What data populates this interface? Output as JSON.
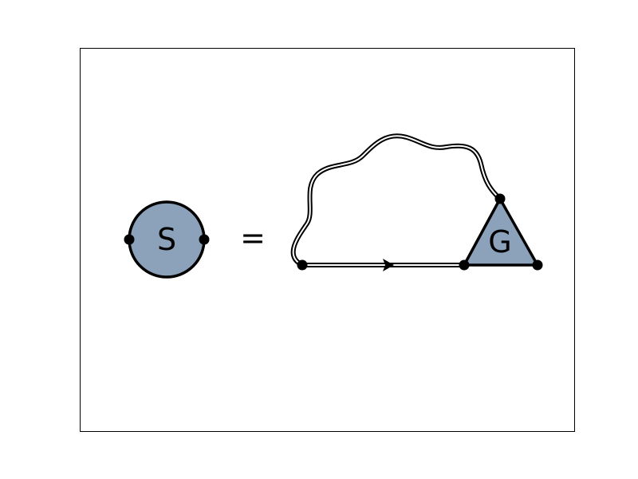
{
  "diagram": {
    "lhs": {
      "label": "S",
      "shape": "circle",
      "fill": "#8ca1ba"
    },
    "operator": "=",
    "rhs": {
      "vertex": {
        "label": "G",
        "shape": "triangle",
        "fill": "#8ca1ba"
      },
      "propagators": [
        {
          "kind": "double-line-with-arrow",
          "arrow_direction": "right"
        },
        {
          "kind": "double-wavy-line"
        }
      ]
    }
  },
  "colors": {
    "frame": "#000000",
    "background": "#ffffff",
    "node_fill": "#8ca1ba"
  }
}
